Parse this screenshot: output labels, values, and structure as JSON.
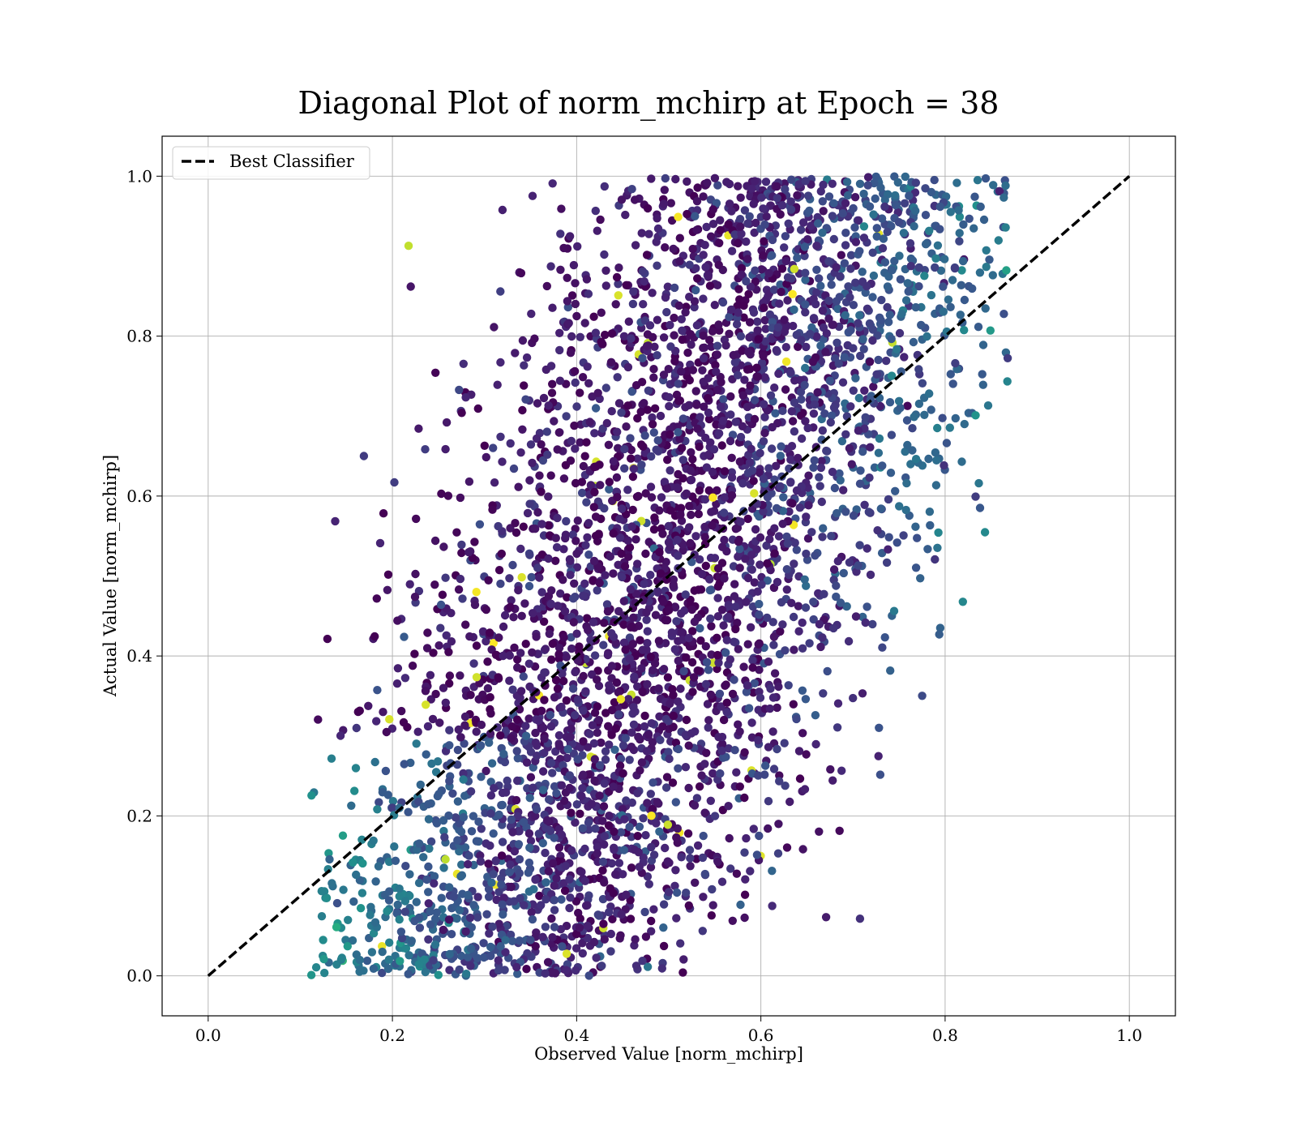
{
  "chart_data": {
    "type": "scatter",
    "title": "Diagonal Plot of norm_mchirp at Epoch = 38",
    "xlabel": "Observed Value [norm_mchirp]",
    "ylabel": "Actual Value [norm_mchirp]",
    "xlim": [
      -0.05,
      1.05
    ],
    "ylim": [
      -0.05,
      1.05
    ],
    "xticks": [
      "0.0",
      "0.2",
      "0.4",
      "0.6",
      "0.8",
      "1.0"
    ],
    "yticks": [
      "0.0",
      "0.2",
      "0.4",
      "0.6",
      "0.8",
      "1.0"
    ],
    "grid": true,
    "legend": {
      "position": "top-left",
      "entries": [
        "Best Classifier"
      ]
    },
    "colormap": "viridis",
    "reference_line": {
      "name": "Best Classifier",
      "x": [
        0.0,
        1.0
      ],
      "y": [
        0.0,
        1.0
      ],
      "style": "dashed",
      "color": "#000000"
    },
    "series": [
      {
        "kind": "scatter-cloud",
        "x_range": [
          0.12,
          0.86
        ],
        "y_range": [
          0.0,
          1.0
        ],
        "upper_bound": [
          [
            0.18,
            0.0
          ],
          [
            0.3,
            0.05
          ],
          [
            0.4,
            0.2
          ],
          [
            0.55,
            0.55
          ],
          [
            0.7,
            0.75
          ],
          [
            0.86,
            1.0
          ]
        ],
        "lower_bound": [
          [
            0.12,
            0.0
          ],
          [
            0.22,
            0.08
          ],
          [
            0.35,
            0.35
          ],
          [
            0.4,
            0.6
          ],
          [
            0.55,
            0.9
          ],
          [
            0.8,
            1.0
          ]
        ],
        "color_scale_note": ""
      }
    ]
  }
}
